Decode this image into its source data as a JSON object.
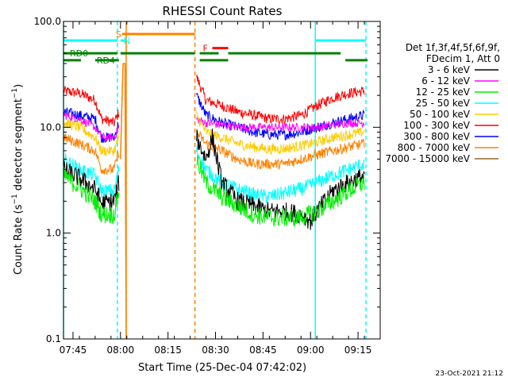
{
  "chart_data": {
    "type": "line",
    "title": "RHESSI Count Rates",
    "xlabel": "Start Time (25-Dec-04 07:42:02)",
    "ylabel_parts": [
      "Count Rate (s",
      "−1",
      " detector segment",
      "−1",
      ")"
    ],
    "y_scale": "log",
    "ylim": [
      0.1,
      100.0
    ],
    "y_ticks": [
      {
        "v": 0.1,
        "label": "0.1"
      },
      {
        "v": 1,
        "label": "1.0"
      },
      {
        "v": 10,
        "label": "10.0"
      },
      {
        "v": 100,
        "label": "100.0"
      }
    ],
    "x_range_min": [
      0,
      100
    ],
    "x_ticks": [
      {
        "v": 3,
        "label": "07:45"
      },
      {
        "v": 18,
        "label": "08:00"
      },
      {
        "v": 33,
        "label": "08:15"
      },
      {
        "v": 48,
        "label": "08:30"
      },
      {
        "v": 63,
        "label": "08:45"
      },
      {
        "v": 78,
        "label": "09:00"
      },
      {
        "v": 93,
        "label": "09:15"
      }
    ],
    "legend_header": [
      "Det 1f,3f,4f,5f,6f,9f,",
      "FDecim 1, Att 0"
    ],
    "legend": [
      {
        "label": "3 - 6 keV",
        "color": "#000000"
      },
      {
        "label": "6 - 12 keV",
        "color": "#ff00ff"
      },
      {
        "label": "12 - 25 keV",
        "color": "#00ee00"
      },
      {
        "label": "25 - 50 keV",
        "color": "#00ffff"
      },
      {
        "label": "50 - 100 keV",
        "color": "#ffcc00"
      },
      {
        "label": "100 - 300 keV",
        "color": "#ff0000"
      },
      {
        "label": "300 - 800 keV",
        "color": "#0000ff"
      },
      {
        "label": "800 - 7000 keV",
        "color": "#ff8000"
      },
      {
        "label": "7000 - 15000 keV",
        "color": "#996633"
      }
    ],
    "series": [
      {
        "color": "#ff0000",
        "noise": 0.05,
        "pre": [
          [
            0,
            22
          ],
          [
            5,
            21
          ],
          [
            10,
            18
          ],
          [
            12,
            12
          ],
          [
            16,
            11
          ],
          [
            17.5,
            14
          ]
        ],
        "post": [
          [
            42,
            30
          ],
          [
            45,
            18
          ],
          [
            50,
            16
          ],
          [
            55,
            14
          ],
          [
            60,
            13
          ],
          [
            65,
            12
          ],
          [
            70,
            12
          ],
          [
            75,
            13
          ],
          [
            80,
            16
          ],
          [
            85,
            19
          ],
          [
            90,
            21
          ],
          [
            95,
            22
          ]
        ]
      },
      {
        "color": "#0000ff",
        "noise": 0.05,
        "pre": [
          [
            0,
            14
          ],
          [
            5,
            13
          ],
          [
            10,
            12
          ],
          [
            12,
            8
          ],
          [
            16,
            8
          ],
          [
            17.5,
            11
          ]
        ],
        "post": [
          [
            42,
            20
          ],
          [
            45,
            13
          ],
          [
            50,
            11
          ],
          [
            55,
            10
          ],
          [
            60,
            9
          ],
          [
            65,
            8.5
          ],
          [
            70,
            8.5
          ],
          [
            75,
            9
          ],
          [
            80,
            10
          ],
          [
            85,
            11
          ],
          [
            90,
            12
          ],
          [
            95,
            13
          ]
        ]
      },
      {
        "color": "#ff00ff",
        "noise": 0.04,
        "pre": [
          [
            0,
            13
          ],
          [
            5,
            12
          ],
          [
            10,
            10
          ],
          [
            12,
            8
          ],
          [
            16,
            8
          ],
          [
            17.5,
            10
          ]
        ],
        "post": [
          [
            42,
            12
          ],
          [
            45,
            11
          ],
          [
            50,
            10.5
          ],
          [
            55,
            10
          ],
          [
            60,
            10
          ],
          [
            65,
            10
          ],
          [
            70,
            10
          ],
          [
            75,
            10
          ],
          [
            80,
            10
          ],
          [
            85,
            10.5
          ],
          [
            90,
            11
          ],
          [
            95,
            11
          ]
        ]
      },
      {
        "color": "#ffcc00",
        "noise": 0.05,
        "pre": [
          [
            0,
            11
          ],
          [
            5,
            10
          ],
          [
            10,
            8
          ],
          [
            12,
            6
          ],
          [
            16,
            6
          ],
          [
            17.5,
            8
          ]
        ],
        "post": [
          [
            42,
            13
          ],
          [
            45,
            9
          ],
          [
            50,
            8
          ],
          [
            55,
            7
          ],
          [
            60,
            6.5
          ],
          [
            65,
            6.2
          ],
          [
            70,
            6.3
          ],
          [
            75,
            6.7
          ],
          [
            80,
            7.2
          ],
          [
            85,
            8
          ],
          [
            90,
            8.5
          ],
          [
            95,
            9
          ]
        ]
      },
      {
        "color": "#ff8000",
        "noise": 0.05,
        "pre": [
          [
            0,
            8
          ],
          [
            5,
            7
          ],
          [
            10,
            6
          ],
          [
            12,
            4
          ],
          [
            16,
            4
          ],
          [
            17.5,
            6
          ]
        ],
        "post": [
          [
            42,
            9
          ],
          [
            45,
            7
          ],
          [
            50,
            6
          ],
          [
            55,
            5
          ],
          [
            60,
            4.5
          ],
          [
            65,
            4.5
          ],
          [
            70,
            4.5
          ],
          [
            75,
            5
          ],
          [
            80,
            5.5
          ],
          [
            85,
            6
          ],
          [
            90,
            6.5
          ],
          [
            95,
            7
          ]
        ]
      },
      {
        "color": "#00ffff",
        "noise": 0.07,
        "pre": [
          [
            0,
            5
          ],
          [
            5,
            4
          ],
          [
            10,
            3.5
          ],
          [
            12,
            2.5
          ],
          [
            16,
            2.5
          ],
          [
            17.5,
            4
          ]
        ],
        "post": [
          [
            42,
            6
          ],
          [
            45,
            4
          ],
          [
            50,
            3
          ],
          [
            55,
            2.6
          ],
          [
            60,
            2.3
          ],
          [
            65,
            2.2
          ],
          [
            70,
            2.4
          ],
          [
            75,
            2.6
          ],
          [
            80,
            3
          ],
          [
            85,
            3.5
          ],
          [
            90,
            4
          ],
          [
            95,
            4.5
          ]
        ]
      },
      {
        "color": "#000000",
        "noise": 0.09,
        "pre": [
          [
            0,
            4
          ],
          [
            5,
            3.3
          ],
          [
            10,
            2.6
          ],
          [
            12,
            1.9
          ],
          [
            16,
            2
          ],
          [
            17.5,
            3
          ]
        ],
        "post": [
          [
            42,
            8
          ],
          [
            45,
            5
          ],
          [
            47,
            8
          ],
          [
            50,
            3
          ],
          [
            55,
            2
          ],
          [
            60,
            1.8
          ],
          [
            65,
            1.6
          ],
          [
            70,
            1.6
          ],
          [
            75,
            1.5
          ],
          [
            78,
            1.3
          ],
          [
            80,
            1.6
          ],
          [
            85,
            2.5
          ],
          [
            90,
            3
          ],
          [
            95,
            3.5
          ]
        ]
      },
      {
        "color": "#00ee00",
        "noise": 0.09,
        "pre": [
          [
            0,
            3.5
          ],
          [
            5,
            2.7
          ],
          [
            10,
            2
          ],
          [
            12,
            1.5
          ],
          [
            16,
            1.5
          ],
          [
            17.5,
            2.5
          ]
        ],
        "post": [
          [
            42,
            5
          ],
          [
            45,
            3
          ],
          [
            50,
            2.2
          ],
          [
            55,
            1.8
          ],
          [
            60,
            1.5
          ],
          [
            65,
            1.4
          ],
          [
            70,
            1.4
          ],
          [
            75,
            1.4
          ],
          [
            80,
            1.6
          ],
          [
            85,
            2
          ],
          [
            90,
            2.5
          ],
          [
            95,
            3
          ]
        ]
      }
    ],
    "spike_orange": [
      [
        18,
        5
      ],
      [
        18.8,
        40
      ],
      [
        19.4,
        40
      ],
      [
        19.8,
        0.1
      ]
    ],
    "vlines": [
      {
        "x": 0,
        "color": "#00ffff",
        "style": "solid"
      },
      {
        "x": 17,
        "color": "#00ffff",
        "style": "dashed"
      },
      {
        "x": 19.8,
        "color": "#ff8000",
        "style": "solid"
      },
      {
        "x": 41.5,
        "color": "#ff8000",
        "style": "dashed"
      },
      {
        "x": 79.5,
        "color": "#00ffff",
        "style": "solid"
      },
      {
        "x": 95.5,
        "color": "#00ffff",
        "style": "dashed"
      }
    ],
    "flag_bars": [
      {
        "x0": 0,
        "x1": 17,
        "y": 66,
        "color": "#00ffff",
        "label": "",
        "label_x": 0
      },
      {
        "x0": 18,
        "x1": 19.5,
        "y": 66,
        "color": "#00ffff",
        "label": "N",
        "label_x": 19
      },
      {
        "x0": 18.5,
        "x1": 41.5,
        "y": 76,
        "color": "#ff8000",
        "label": "S",
        "label_x": 16.5
      },
      {
        "x0": 79.5,
        "x1": 95.5,
        "y": 66,
        "color": "#00ffff",
        "label": "",
        "label_x": 0
      },
      {
        "x0": 47,
        "x1": 52,
        "y": 56,
        "color": "#ff0000",
        "label": "F",
        "label_x": 44
      },
      {
        "x0": 0,
        "x1": 17,
        "y": 50,
        "color": "#008000",
        "label": "RD0",
        "label_x": 2
      },
      {
        "x0": 18,
        "x1": 41.5,
        "y": 50,
        "color": "#008000",
        "label": "",
        "label_x": 0
      },
      {
        "x0": 43,
        "x1": 49,
        "y": 50,
        "color": "#008000",
        "label": "",
        "label_x": 0
      },
      {
        "x0": 52,
        "x1": 87.5,
        "y": 50,
        "color": "#008000",
        "label": "",
        "label_x": 0
      },
      {
        "x0": 0,
        "x1": 5.5,
        "y": 43,
        "color": "#008000",
        "label": "",
        "label_x": 0
      },
      {
        "x0": 10,
        "x1": 17.5,
        "y": 43,
        "color": "#008000",
        "label": "RD4",
        "label_x": 10.5
      },
      {
        "x0": 43,
        "x1": 52,
        "y": 43,
        "color": "#008000",
        "label": "",
        "label_x": 0
      },
      {
        "x0": 89,
        "x1": 96,
        "y": 43,
        "color": "#008000",
        "label": "",
        "label_x": 0
      }
    ]
  },
  "footer": {
    "timestamp": "23-Oct-2021 21:12"
  }
}
